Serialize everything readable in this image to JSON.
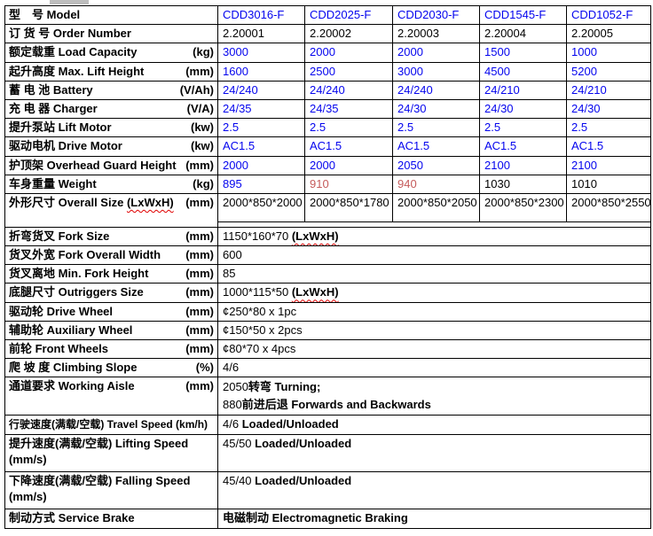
{
  "palette": {
    "value_blue": "#0404ee",
    "highlight_red": "#c55b5b",
    "text_black": "#000000",
    "border_black": "#000000",
    "squiggle_red": "#e00000",
    "artifact_gray": "#bdbdbd",
    "background": "#ffffff"
  },
  "table": {
    "rows": [
      {
        "label": "型　号 Model",
        "unit": "",
        "values": [
          "CDD3016-F",
          "CDD2025-F",
          "CDD2030-F",
          "CDD1545-F",
          "CDD1052-F"
        ],
        "value_classes": [
          "v-blue",
          "v-blue",
          "v-blue",
          "v-blue",
          "v-blue"
        ]
      },
      {
        "label": "订 货 号 Order Number",
        "unit": "",
        "values": [
          "2.20001",
          "2.20002",
          "2.20003",
          "2.20004",
          "2.20005"
        ],
        "value_classes": [
          "v-black",
          "v-black",
          "v-black",
          "v-black",
          "v-black"
        ]
      },
      {
        "label": "额定载重 Load Capacity",
        "unit": "(kg)",
        "values": [
          "3000",
          "2000",
          "2000",
          "1500",
          "1000"
        ],
        "value_classes": [
          "v-blue",
          "v-blue",
          "v-blue",
          "v-blue",
          "v-blue"
        ]
      },
      {
        "label": "起升高度 Max. Lift Height",
        "unit": "(mm)",
        "values": [
          "1600",
          "2500",
          "3000",
          "4500",
          "5200"
        ],
        "value_classes": [
          "v-blue",
          "v-blue",
          "v-blue",
          "v-blue",
          "v-blue"
        ]
      },
      {
        "label": "蓄 电 池 Battery",
        "unit": "(V/Ah)",
        "values": [
          "24/240",
          "24/240",
          "24/240",
          "24/210",
          "24/210"
        ],
        "value_classes": [
          "v-blue",
          "v-blue",
          "v-blue",
          "v-blue",
          "v-blue"
        ]
      },
      {
        "label": "充 电 器 Charger",
        "unit": "(V/A)",
        "values": [
          "24/35",
          "24/35",
          "24/30",
          "24/30",
          "24/30"
        ],
        "value_classes": [
          "v-blue",
          "v-blue",
          "v-blue",
          "v-blue",
          "v-blue"
        ]
      },
      {
        "label": "提升泵站 Lift Motor",
        "unit": "(kw)",
        "values": [
          "2.5",
          "2.5",
          "2.5",
          "2.5",
          "2.5"
        ],
        "value_classes": [
          "v-blue",
          "v-blue",
          "v-blue",
          "v-blue",
          "v-blue"
        ]
      },
      {
        "label": "驱动电机 Drive Motor",
        "unit": "(kw)",
        "values": [
          "AC1.5",
          "AC1.5",
          "AC1.5",
          "AC1.5",
          "AC1.5"
        ],
        "value_classes": [
          "v-blue",
          "v-blue",
          "v-blue",
          "v-blue",
          "v-blue"
        ]
      },
      {
        "label": "护顶架 Overhead Guard Height",
        "unit": "(mm)",
        "values": [
          "2000",
          "2000",
          "2050",
          "2100",
          "2100"
        ],
        "value_classes": [
          "v-blue",
          "v-blue",
          "v-blue",
          "v-blue",
          "v-blue"
        ]
      },
      {
        "label": "车身重量 Weight",
        "unit": "(kg)",
        "values": [
          "895",
          "910",
          "940",
          "1030",
          "1010"
        ],
        "value_classes": [
          "v-blue",
          "v-red",
          "v-red",
          "v-black",
          "v-black"
        ]
      },
      {
        "label": "外形尺寸 Overall Size ",
        "label_sq": "(LxWxH)",
        "unit": "(mm)",
        "values": [
          "2000*850*2000",
          "2000*850*1780",
          "2000*850*2050",
          "2000*850*2300",
          "2000*850*2550"
        ],
        "value_classes": [
          "v-black",
          "v-black",
          "v-black",
          "v-black",
          "v-black"
        ]
      },
      {
        "label": "折弯货叉 Fork Size",
        "unit": "(mm)",
        "value": "1150*160*70 ",
        "value_sq": "(LxWxH)"
      },
      {
        "label": "货叉外宽 Fork Overall Width",
        "unit": "(mm)",
        "value": "600"
      },
      {
        "label": "货叉离地 Min. Fork Height",
        "unit": "(mm)",
        "value": "85"
      },
      {
        "label": "底腿尺寸 Outriggers Size",
        "unit": "(mm)",
        "value": "1000*115*50 ",
        "value_sq": "(LxWxH)"
      },
      {
        "label": "驱动轮 Drive Wheel",
        "unit": "(mm)",
        "value": "¢250*80 x 1pc"
      },
      {
        "label": "辅助轮 Auxiliary Wheel",
        "unit": "(mm)",
        "value": "¢150*50 x 2pcs"
      },
      {
        "label": "前轮 Front Wheels",
        "unit": "(mm)",
        "value": "¢80*70 x 4pcs"
      },
      {
        "label": "爬 坡 度 Climbing Slope",
        "unit": "(%)",
        "value": "4/6"
      },
      {
        "label": "通道要求 Working Aisle",
        "unit": "(mm)",
        "lines": [
          {
            "num": "2050",
            "rest": "转弯 Turning;"
          },
          {
            "num": "880",
            "rest": "前进后退 Forwards and Backwards"
          }
        ]
      },
      {
        "label": "行驶速度(满载/空载) Travel Speed (km/h)",
        "unit": "",
        "value": "4/6 ",
        "value_bold": "Loaded/Unloaded"
      },
      {
        "label": "提升速度(满载/空载)  Lifting Speed",
        "unit": "(mm/s)",
        "value": "45/50 ",
        "value_bold": "Loaded/Unloaded"
      },
      {
        "label": "下降速度(满载/空载) Falling Speed",
        "unit": "(mm/s)",
        "value": "45/40 ",
        "value_bold": "Loaded/Unloaded"
      },
      {
        "label": "制动方式 Service Brake",
        "unit": "",
        "value_bold": "电磁制动 Electromagnetic Braking"
      }
    ]
  }
}
